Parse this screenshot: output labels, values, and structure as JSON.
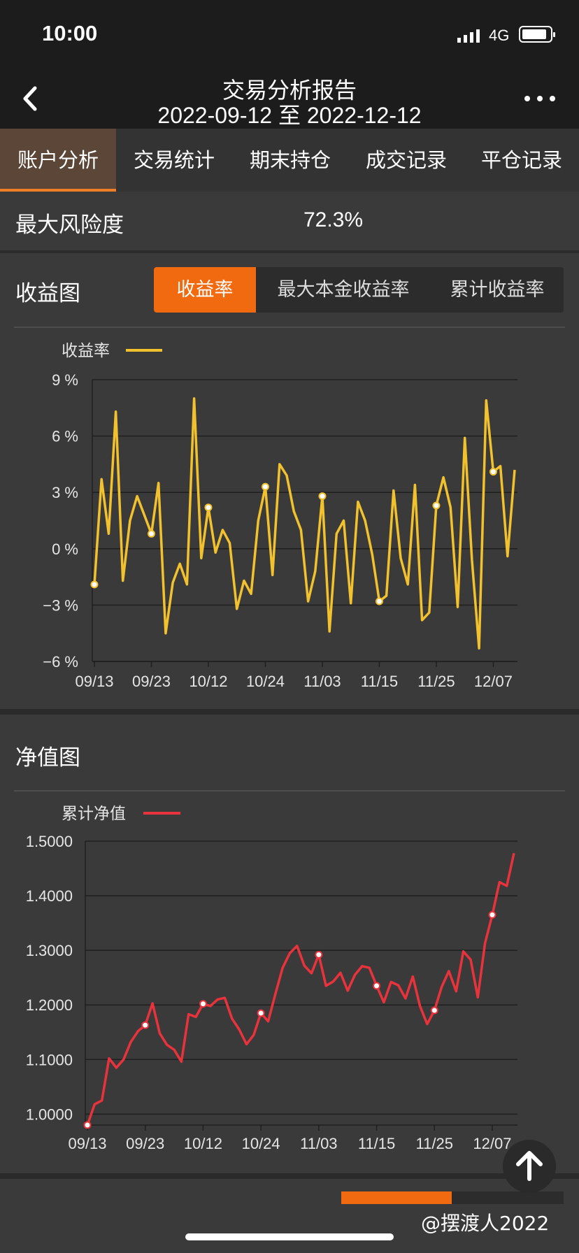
{
  "status_bar": {
    "time": "10:00",
    "network": "4G"
  },
  "nav": {
    "title": "交易分析报告",
    "date_range": "2022-09-12 至 2022-12-12",
    "back_icon": "chevron-left-icon",
    "more_icon": "more-dots-icon"
  },
  "tabs": [
    {
      "label": "账户分析",
      "active": true
    },
    {
      "label": "交易统计",
      "active": false
    },
    {
      "label": "期末持仓",
      "active": false
    },
    {
      "label": "成交记录",
      "active": false
    },
    {
      "label": "平仓记录",
      "active": false
    }
  ],
  "risk": {
    "label": "最大风险度",
    "value": "72.3%"
  },
  "returns_section": {
    "title": "收益图",
    "segments": [
      {
        "label": "收益率",
        "active": true
      },
      {
        "label": "最大本金收益率",
        "active": false
      },
      {
        "label": "累计收益率",
        "active": false
      }
    ]
  },
  "nav_section": {
    "title": "净值图"
  },
  "chart_data": [
    {
      "type": "line",
      "legend": "收益率",
      "color": "#f2c12e",
      "ylim": [
        -6,
        9
      ],
      "yticks": [
        9,
        6,
        3,
        0,
        -3,
        -6
      ],
      "ytick_labels": [
        "9 %",
        "6 %",
        "3 %",
        "0 %",
        "−3 %",
        "−6 %"
      ],
      "xtick_labels": [
        "09/13",
        "09/23",
        "10/12",
        "10/24",
        "11/03",
        "11/15",
        "11/25",
        "12/07"
      ],
      "grid": true,
      "legend_position": "top-left",
      "series": [
        {
          "values": [
            -1.9,
            3.7,
            0.8,
            7.3,
            -1.7,
            1.5,
            2.8,
            1.8,
            0.8,
            3.5,
            -4.5,
            -1.8,
            -0.8,
            -1.9,
            8.0,
            -0.5,
            2.2,
            -0.2,
            1.0,
            0.3,
            -3.2,
            -1.7,
            -2.4,
            1.5,
            3.3,
            -1.4,
            4.5,
            3.9,
            2.0,
            1.0,
            -2.8,
            -1.2,
            2.8,
            -4.4,
            0.8,
            1.5,
            -2.9,
            2.5,
            1.5,
            -0.3,
            -2.8,
            -2.5,
            3.1,
            -0.5,
            -1.9,
            3.4,
            -3.8,
            -3.4,
            2.3,
            3.8,
            2.2,
            -3.1,
            5.9,
            -0.6,
            -5.3,
            7.9,
            4.1,
            4.4,
            -0.4,
            4.2
          ],
          "markers": [
            0,
            8,
            16,
            24,
            32,
            40,
            48,
            56
          ]
        }
      ]
    },
    {
      "type": "line",
      "legend": "累计净值",
      "color": "#e8333d",
      "ylim": [
        0.98,
        1.5
      ],
      "yticks": [
        1.5,
        1.4,
        1.3,
        1.2,
        1.1,
        1.0
      ],
      "ytick_labels": [
        "1.5000",
        "1.4000",
        "1.3000",
        "1.2000",
        "1.1000",
        "1.0000"
      ],
      "xtick_labels": [
        "09/13",
        "09/23",
        "10/12",
        "10/24",
        "11/03",
        "11/15",
        "11/25",
        "12/07"
      ],
      "grid": true,
      "legend_position": "top-left",
      "series": [
        {
          "values": [
            0.98,
            1.018,
            1.025,
            1.102,
            1.085,
            1.1,
            1.132,
            1.152,
            1.163,
            1.203,
            1.148,
            1.127,
            1.118,
            1.096,
            1.183,
            1.178,
            1.202,
            1.198,
            1.21,
            1.213,
            1.175,
            1.155,
            1.128,
            1.145,
            1.185,
            1.17,
            1.22,
            1.268,
            1.295,
            1.308,
            1.272,
            1.258,
            1.292,
            1.235,
            1.243,
            1.259,
            1.226,
            1.255,
            1.271,
            1.268,
            1.235,
            1.205,
            1.242,
            1.236,
            1.212,
            1.252,
            1.198,
            1.165,
            1.19,
            1.233,
            1.262,
            1.225,
            1.298,
            1.283,
            1.214,
            1.313,
            1.365,
            1.425,
            1.418,
            1.478
          ],
          "markers": [
            0,
            8,
            16,
            24,
            32,
            40,
            48,
            56
          ]
        }
      ]
    }
  ],
  "bottom": {
    "watermark": "@摆渡人2022",
    "scroll_top_icon": "arrow-up-icon"
  }
}
